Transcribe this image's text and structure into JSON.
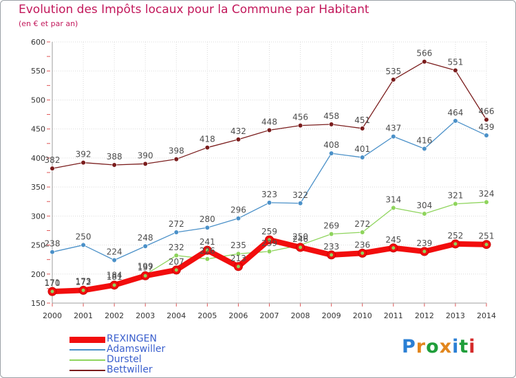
{
  "title": "Evolution des Impôts locaux pour la Commune par Habitant",
  "subtitle": "(en € et par an)",
  "logo": {
    "text": "Proxiti",
    "colors": [
      "#2a7fd4",
      "#e2861d",
      "#1f9e3a",
      "#e2861d",
      "#2a7fd4",
      "#1f9e3a",
      "#d42a2a"
    ]
  },
  "colors": {
    "frame_border": "#9aa0a6",
    "title": "#c2185b",
    "axis": "#9e9e9e",
    "grid": "#d9d9d9",
    "tick": "#e05555",
    "legend_text": "#3a5fcd"
  },
  "chart_data": {
    "type": "line",
    "title": "Evolution des Impôts locaux pour la Commune par Habitant",
    "subtitle": "(en € et par an)",
    "x": [
      "2000",
      "2001",
      "2002",
      "2003",
      "2004",
      "2005",
      "2006",
      "2007",
      "2008",
      "2009",
      "2010",
      "2011",
      "2012",
      "2013",
      "2014"
    ],
    "ylim": [
      150,
      600
    ],
    "yticks": [
      "150",
      "200",
      "250",
      "300",
      "350",
      "400",
      "450",
      "500",
      "550",
      "600"
    ],
    "grid": true,
    "legend_position": "bottom-left",
    "series": [
      {
        "name": "REXINGEN",
        "color": "#f20d0d",
        "values": [
          170,
          172,
          181,
          197,
          207,
          241,
          213,
          259,
          246,
          233,
          236,
          245,
          239,
          252,
          251
        ],
        "labels": [
          "170",
          "172",
          "181",
          "197",
          "207",
          "241",
          "213",
          "259",
          "246",
          "233",
          "236",
          "245",
          "239",
          "252",
          "251"
        ]
      },
      {
        "name": "Adamswiller",
        "color": "#4a90c8",
        "values": [
          238,
          250,
          224,
          248,
          272,
          280,
          296,
          323,
          322,
          408,
          401,
          437,
          416,
          464,
          439
        ],
        "labels": [
          "238",
          "250",
          "224",
          "248",
          "272",
          "280",
          "296",
          "323",
          "322",
          "408",
          "401",
          "437",
          "416",
          "464",
          "439"
        ]
      },
      {
        "name": "Durstel",
        "color": "#8ed45c",
        "values": [
          171,
          173,
          184,
          199,
          232,
          226,
          235,
          239,
          250,
          269,
          272,
          314,
          304,
          321,
          324
        ],
        "labels": [
          "171",
          "173",
          "184",
          "199",
          "232",
          "226",
          "235",
          "239",
          "250",
          "269",
          "272",
          "314",
          "304",
          "321",
          "324"
        ]
      },
      {
        "name": "Bettwiller",
        "color": "#7a1c1c",
        "values": [
          382,
          392,
          388,
          390,
          398,
          418,
          432,
          448,
          456,
          458,
          451,
          535,
          566,
          551,
          466
        ],
        "labels": [
          "382",
          "392",
          "388",
          "390",
          "398",
          "418",
          "432",
          "448",
          "456",
          "458",
          "451",
          "535",
          "566",
          "551",
          "466"
        ]
      }
    ]
  }
}
